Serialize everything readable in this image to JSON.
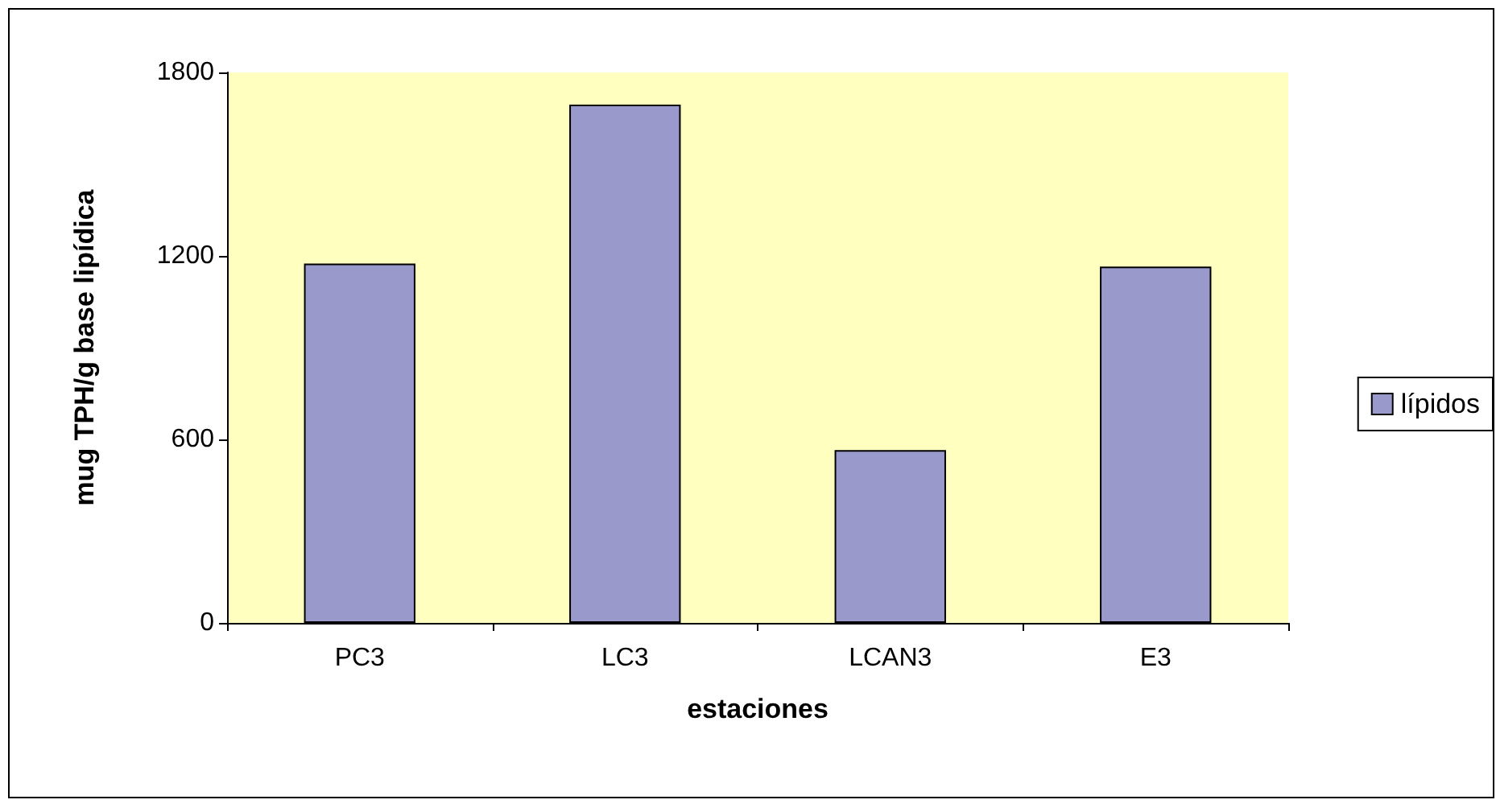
{
  "chart_data": {
    "type": "bar",
    "xlabel": "estaciones",
    "ylabel": "mug TPH/g base lipídica",
    "categories": [
      "PC3",
      "LC3",
      "LCAN3",
      "E3"
    ],
    "series": [
      {
        "name": "lípidos",
        "color": "#9999cc",
        "values": [
          1175,
          1695,
          565,
          1165
        ]
      }
    ],
    "ylim": [
      0,
      1800
    ],
    "yticks": [
      0,
      600,
      1200,
      1800
    ],
    "grid": false,
    "legend": "right"
  }
}
